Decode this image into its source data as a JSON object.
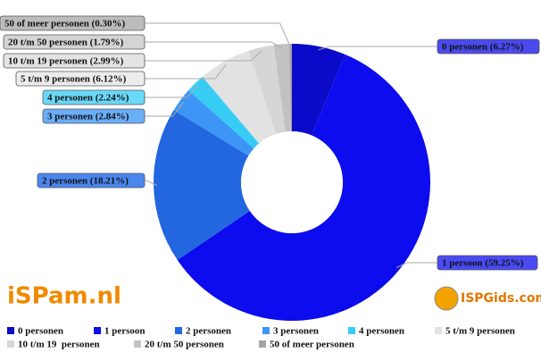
{
  "chart_data": {
    "type": "donut",
    "categories": [
      "0 personen",
      "1 persoon",
      "2 personen",
      "3 personen",
      "4 personen",
      "5 t/m 9 personen",
      "10 t/m 19  personen",
      "20 t/m 50 personen",
      "50 of meer personen"
    ],
    "values": [
      6.27,
      59.25,
      18.21,
      2.84,
      2.24,
      6.12,
      2.99,
      1.79,
      0.3
    ],
    "value_labels": [
      "0 personen (6.27%)",
      "1 persoon (59.25%)",
      "2 personen (18.21%)",
      "3 personen (2.84%)",
      "4 personen (2.24%)",
      "5 t/m 9 personen (6.12%)",
      "10 t/m 19 personen (2.99%)",
      "20 t/m 50 personen (1.79%)",
      "50 of meer personen (0.30%)"
    ],
    "colors": [
      "#0a0ac8",
      "#0c0cee",
      "#2266e0",
      "#3d96f5",
      "#38ccf5",
      "#e2e2e2",
      "#d6d6d6",
      "#c2c2c2",
      "#a4a4a4"
    ],
    "legend": "bottom"
  },
  "branding": {
    "left": "iSPam.nl",
    "right": "ISPGids.com"
  }
}
